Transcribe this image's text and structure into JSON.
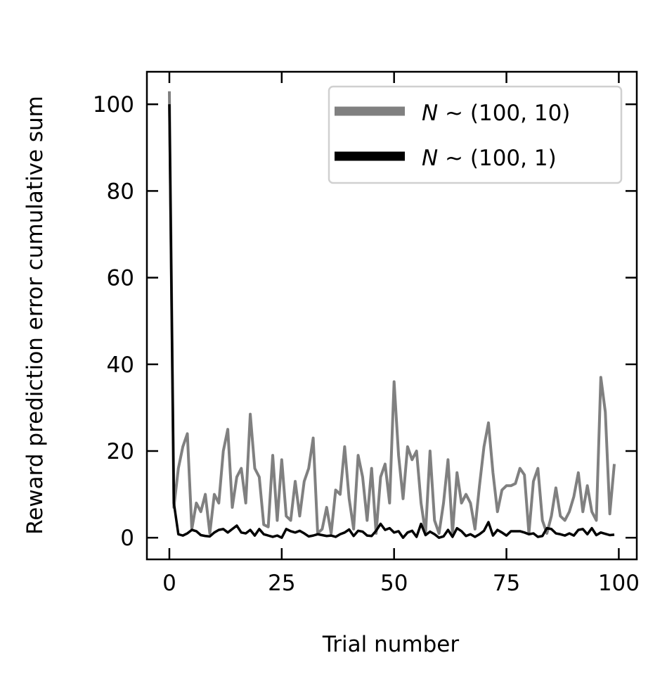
{
  "chart_data": {
    "type": "line",
    "title": "",
    "xlabel": "Trial number",
    "ylabel": "Reward prediction error cumulative sum",
    "xlim": [
      -5,
      104
    ],
    "ylim": [
      -5,
      107.5
    ],
    "xticks": [
      0,
      25,
      50,
      75,
      100
    ],
    "yticks": [
      0,
      20,
      40,
      60,
      80,
      100
    ],
    "tick_direction": "in",
    "ticks_on_all_sides": true,
    "grid": false,
    "legend_position": "top-right",
    "series": [
      {
        "name_prefix": "N",
        "name_rest": " ~ (100, 10)",
        "color": "#808080",
        "x": [
          0,
          1,
          2,
          3,
          4,
          5,
          6,
          7,
          8,
          9,
          10,
          11,
          12,
          13,
          14,
          15,
          16,
          17,
          18,
          19,
          20,
          21,
          22,
          23,
          24,
          25,
          26,
          27,
          28,
          29,
          30,
          31,
          32,
          33,
          34,
          35,
          36,
          37,
          38,
          39,
          40,
          41,
          42,
          43,
          44,
          45,
          46,
          47,
          48,
          49,
          50,
          51,
          52,
          53,
          54,
          55,
          56,
          57,
          58,
          59,
          60,
          61,
          62,
          63,
          64,
          65,
          66,
          67,
          68,
          69,
          70,
          71,
          72,
          73,
          74,
          75,
          76,
          77,
          78,
          79,
          80,
          81,
          82,
          83,
          84,
          85,
          86,
          87,
          88,
          89,
          90,
          91,
          92,
          93,
          94,
          95,
          96,
          97,
          98,
          99
        ],
        "values": [
          103,
          7,
          16,
          21,
          24,
          2,
          8,
          6,
          10,
          1,
          10,
          8,
          20,
          25,
          7,
          14,
          16,
          8,
          28.5,
          16,
          14,
          3,
          2.5,
          19,
          4,
          18,
          5,
          4,
          13,
          5,
          13,
          16,
          23,
          1,
          2,
          7,
          1,
          11,
          10,
          21,
          9,
          2,
          19,
          14,
          4,
          16,
          1,
          14,
          17,
          8,
          36,
          19,
          9,
          21,
          18,
          20,
          8,
          1,
          20,
          4,
          1,
          8,
          18,
          1,
          15,
          8,
          10,
          8,
          2,
          12,
          21,
          26.5,
          15,
          6,
          11,
          12,
          12,
          12.5,
          16,
          14.5,
          1,
          13,
          16,
          4,
          1,
          5,
          11.5,
          5,
          4,
          6,
          9.5,
          15,
          6,
          12,
          6,
          4,
          37,
          29,
          5.5,
          17
        ]
      },
      {
        "name_prefix": "N",
        "name_rest": " ~ (100, 1)",
        "color": "#000000",
        "x": [
          0,
          1,
          2,
          3,
          4,
          5,
          6,
          7,
          8,
          9,
          10,
          11,
          12,
          13,
          14,
          15,
          16,
          17,
          18,
          19,
          20,
          21,
          22,
          23,
          24,
          25,
          26,
          27,
          28,
          29,
          30,
          31,
          32,
          33,
          34,
          35,
          36,
          37,
          38,
          39,
          40,
          41,
          42,
          43,
          44,
          45,
          46,
          47,
          48,
          49,
          50,
          51,
          52,
          53,
          54,
          55,
          56,
          57,
          58,
          59,
          60,
          61,
          62,
          63,
          64,
          65,
          66,
          67,
          68,
          69,
          70,
          71,
          72,
          73,
          74,
          75,
          76,
          77,
          78,
          79,
          80,
          81,
          82,
          83,
          84,
          85,
          86,
          87,
          88,
          89,
          90,
          91,
          92,
          93,
          94,
          95,
          96,
          97,
          98,
          99
        ],
        "values": [
          100,
          8,
          0.8,
          0.5,
          1,
          1.8,
          1.5,
          0.6,
          0.4,
          0.3,
          1.2,
          1.8,
          2,
          1.2,
          2,
          2.8,
          1.2,
          1,
          1.8,
          0.5,
          2,
          0.8,
          0.5,
          0.2,
          0.5,
          0,
          2,
          1.5,
          1.2,
          1.6,
          1,
          0.3,
          0.5,
          0.8,
          0.6,
          0.4,
          0.5,
          0.2,
          0.8,
          1.2,
          1.9,
          0.4,
          1.6,
          1.4,
          0.5,
          0.4,
          1.6,
          3.2,
          1.8,
          2.2,
          1.2,
          1.5,
          0,
          1.2,
          1.6,
          0.2,
          3.2,
          0.6,
          1.4,
          0.8,
          0,
          0.3,
          1.8,
          0.2,
          2.2,
          1.5,
          0.4,
          0.8,
          0.2,
          0.8,
          1.6,
          3.6,
          0.5,
          1.8,
          1.2,
          0.5,
          1.5,
          1.5,
          1.5,
          1.2,
          0.8,
          1,
          0.2,
          0.4,
          2.2,
          2,
          1,
          0.8,
          0.5,
          1,
          0.5,
          1.8,
          2,
          0.8,
          2.2,
          0.6,
          1.2,
          0.9,
          0.6,
          0.7
        ]
      }
    ]
  }
}
